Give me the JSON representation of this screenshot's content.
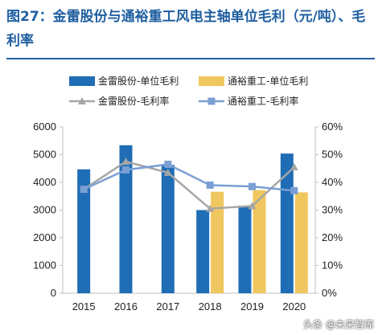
{
  "title": "图27：金雷股份与通裕重工风电主轴单位毛利（元/吨）、毛利率",
  "watermark": "头条 @未来智库",
  "chart_data": {
    "type": "bar",
    "categories": [
      "2015",
      "2016",
      "2017",
      "2018",
      "2019",
      "2020"
    ],
    "bar_series": [
      {
        "name": "金雷股份-单位毛利",
        "color": "#1f6db5",
        "values": [
          4470,
          5340,
          4630,
          3000,
          3160,
          5040
        ]
      },
      {
        "name": "通裕重工-单位毛利",
        "color": "#f0c75e",
        "values": [
          null,
          null,
          null,
          3660,
          3720,
          3640
        ]
      }
    ],
    "line_series": [
      {
        "name": "金雷股份-毛利率",
        "color": "#a6a6a6",
        "marker": "triangle",
        "values": [
          0.375,
          0.475,
          0.435,
          0.305,
          0.315,
          0.455
        ]
      },
      {
        "name": "通裕重工-毛利率",
        "color": "#7a9fd4",
        "marker": "square",
        "values": [
          0.375,
          0.445,
          0.465,
          0.39,
          0.385,
          0.37
        ]
      }
    ],
    "y_left": {
      "min": 0,
      "max": 6000,
      "ticks": [
        "0",
        "1000",
        "2000",
        "3000",
        "4000",
        "5000",
        "6000"
      ]
    },
    "y_right": {
      "min": 0,
      "max": 0.6,
      "ticks": [
        "0%",
        "10%",
        "20%",
        "30%",
        "40%",
        "50%",
        "60%"
      ]
    },
    "legend_position": "top"
  }
}
